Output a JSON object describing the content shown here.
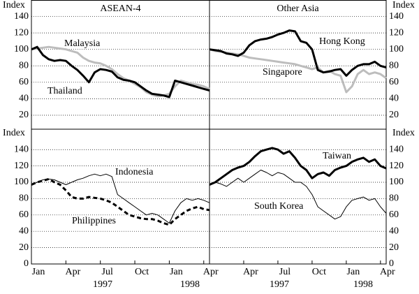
{
  "chart_data": [
    {
      "type": "line",
      "title": "ASEAN-4",
      "y_label": "Index",
      "x": [
        0,
        0.5,
        1,
        1.5,
        2,
        2.5,
        3,
        3.5,
        4,
        4.5,
        5,
        5.5,
        6,
        6.5,
        7,
        7.5,
        8,
        8.5,
        9,
        9.5,
        10,
        10.5,
        11,
        11.5,
        12,
        12.5,
        13,
        13.5,
        14,
        14.5,
        15,
        15.5
      ],
      "xlim": [
        0,
        15.5
      ],
      "ylim": [
        3,
        160
      ],
      "yticks": [
        20,
        40,
        60,
        80,
        100,
        120,
        140
      ],
      "grid": true,
      "tick_side": "left",
      "series": [
        {
          "name": "Malaysia",
          "color": "#bdbdbd",
          "line_width": 3,
          "line_style": "solid",
          "values": [
            100,
            101,
            102,
            103,
            102,
            101,
            100,
            98,
            96,
            90,
            86,
            84,
            83,
            80,
            76,
            70,
            65,
            62,
            58,
            54,
            48,
            45,
            43,
            44,
            46,
            55,
            62,
            60,
            58,
            57,
            55,
            52
          ]
        },
        {
          "name": "Thailand",
          "color": "#000000",
          "line_width": 3,
          "line_style": "solid",
          "values": [
            100,
            103,
            93,
            88,
            86,
            87,
            86,
            80,
            75,
            68,
            60,
            72,
            76,
            75,
            73,
            66,
            63,
            62,
            60,
            55,
            50,
            46,
            45,
            44,
            42,
            62,
            60,
            58,
            56,
            54,
            52,
            50
          ]
        }
      ]
    },
    {
      "type": "line",
      "title": "Other Asia",
      "y_label": "Index",
      "x": [
        0,
        0.5,
        1,
        1.5,
        2,
        2.5,
        3,
        3.5,
        4,
        4.5,
        5,
        5.5,
        6,
        6.5,
        7,
        7.5,
        8,
        8.5,
        9,
        9.5,
        10,
        10.5,
        11,
        11.5,
        12,
        12.5,
        13,
        13.5,
        14,
        14.5,
        15,
        15.5
      ],
      "xlim": [
        0,
        15.5
      ],
      "ylim": [
        3,
        160
      ],
      "yticks": [
        20,
        40,
        60,
        80,
        100,
        120,
        140
      ],
      "grid": true,
      "tick_side": "right",
      "series": [
        {
          "name": "Singapore",
          "color": "#bdbdbd",
          "line_width": 3,
          "line_style": "solid",
          "values": [
            100,
            98,
            97,
            96,
            95,
            94,
            92,
            90,
            89,
            88,
            87,
            86,
            85,
            84,
            83,
            82,
            80,
            78,
            76,
            78,
            72,
            74,
            70,
            68,
            48,
            55,
            70,
            75,
            70,
            72,
            70,
            65
          ]
        },
        {
          "name": "Hong Kong",
          "color": "#000000",
          "line_width": 3,
          "line_style": "solid",
          "values": [
            100,
            99,
            98,
            95,
            94,
            92,
            96,
            105,
            110,
            112,
            113,
            115,
            118,
            120,
            123,
            122,
            110,
            108,
            100,
            75,
            72,
            73,
            75,
            76,
            68,
            75,
            80,
            82,
            82,
            85,
            80,
            78
          ]
        }
      ]
    },
    {
      "type": "line",
      "y_label": "Index",
      "x": [
        0,
        0.5,
        1,
        1.5,
        2,
        2.5,
        3,
        3.5,
        4,
        4.5,
        5,
        5.5,
        6,
        6.5,
        7,
        7.5,
        8,
        8.5,
        9,
        9.5,
        10,
        10.5,
        11,
        11.5,
        12,
        12.5,
        13,
        13.5,
        14,
        14.5,
        15,
        15.5
      ],
      "xlim": [
        0,
        15.5
      ],
      "ylim": [
        0,
        165
      ],
      "yticks": [
        0,
        20,
        40,
        60,
        80,
        100,
        120,
        140
      ],
      "grid": true,
      "tick_side": "left",
      "xticks": [
        {
          "value": 0,
          "label": "Jan"
        },
        {
          "value": 3,
          "label": "Apr"
        },
        {
          "value": 6,
          "label": "Jul"
        },
        {
          "value": 9,
          "label": "Oct"
        },
        {
          "value": 12,
          "label": "Jan"
        },
        {
          "value": 15,
          "label": "Apr"
        }
      ],
      "years": [
        "1997",
        "1998"
      ],
      "series": [
        {
          "name": "Indonesia",
          "color": "#000000",
          "line_width": 1,
          "line_style": "solid",
          "values": [
            97,
            100,
            103,
            104,
            103,
            100,
            97,
            100,
            103,
            105,
            108,
            110,
            108,
            110,
            107,
            85,
            80,
            75,
            70,
            65,
            60,
            62,
            60,
            55,
            50,
            65,
            75,
            80,
            78,
            80,
            78,
            75
          ]
        },
        {
          "name": "Philippines",
          "color": "#000000",
          "line_width": 3,
          "line_style": "dashed",
          "values": [
            97,
            100,
            102,
            104,
            100,
            97,
            90,
            82,
            80,
            80,
            82,
            81,
            80,
            78,
            75,
            70,
            65,
            60,
            58,
            56,
            55,
            55,
            53,
            50,
            48,
            55,
            60,
            65,
            68,
            70,
            67,
            66
          ]
        }
      ]
    },
    {
      "type": "line",
      "y_label": "Index",
      "x": [
        0,
        0.5,
        1,
        1.5,
        2,
        2.5,
        3,
        3.5,
        4,
        4.5,
        5,
        5.5,
        6,
        6.5,
        7,
        7.5,
        8,
        8.5,
        9,
        9.5,
        10,
        10.5,
        11,
        11.5,
        12,
        12.5,
        13,
        13.5,
        14,
        14.5,
        15,
        15.5
      ],
      "xlim": [
        0,
        15.5
      ],
      "ylim": [
        0,
        165
      ],
      "yticks": [
        0,
        20,
        40,
        60,
        80,
        100,
        120,
        140
      ],
      "grid": true,
      "tick_side": "right",
      "xticks": [
        {
          "value": 3,
          "label": "Apr"
        },
        {
          "value": 6,
          "label": "Jul"
        },
        {
          "value": 9,
          "label": "Oct"
        },
        {
          "value": 12,
          "label": "Jan"
        },
        {
          "value": 15,
          "label": "Apr"
        }
      ],
      "years": [
        "1997",
        "1998"
      ],
      "series": [
        {
          "name": "Taiwan",
          "color": "#000000",
          "line_width": 3,
          "line_style": "solid",
          "values": [
            97,
            100,
            105,
            110,
            115,
            118,
            120,
            125,
            132,
            138,
            140,
            142,
            140,
            135,
            138,
            130,
            120,
            115,
            105,
            110,
            112,
            108,
            115,
            118,
            120,
            125,
            128,
            130,
            125,
            128,
            120,
            117
          ]
        },
        {
          "name": "South Korea",
          "color": "#000000",
          "line_width": 1,
          "line_style": "solid",
          "values": [
            97,
            100,
            98,
            95,
            100,
            105,
            100,
            105,
            110,
            115,
            112,
            108,
            112,
            110,
            105,
            100,
            100,
            95,
            85,
            70,
            65,
            60,
            55,
            58,
            70,
            78,
            80,
            82,
            78,
            80,
            70,
            62
          ]
        }
      ]
    }
  ]
}
